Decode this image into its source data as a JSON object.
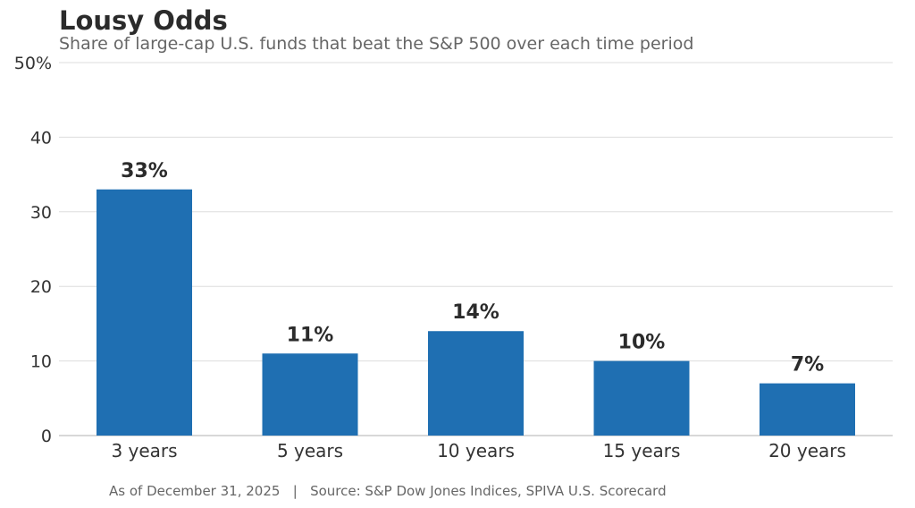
{
  "chart_data": {
    "type": "bar",
    "title": "Lousy Odds",
    "subtitle": "Share of large-cap U.S. funds that beat the S&P 500 over each time period",
    "categories": [
      "3 years",
      "5 years",
      "10 years",
      "15 years",
      "20 years"
    ],
    "values": [
      33,
      11,
      14,
      10,
      7
    ],
    "data_labels": [
      "33%",
      "11%",
      "14%",
      "10%",
      "7%"
    ],
    "xlabel": "",
    "ylabel": "",
    "ylim": [
      0,
      50
    ],
    "yticks": [
      0,
      10,
      20,
      30,
      40,
      50
    ],
    "ytick_labels": [
      "0",
      "10",
      "20",
      "30",
      "40",
      "50%"
    ],
    "grid": true,
    "legend": "none",
    "bar_color": "#1f6fb2"
  },
  "footer": {
    "note": "As of December 31, 2025   |   Source: S&P Dow Jones Indices, SPIVA U.S. Scorecard"
  }
}
